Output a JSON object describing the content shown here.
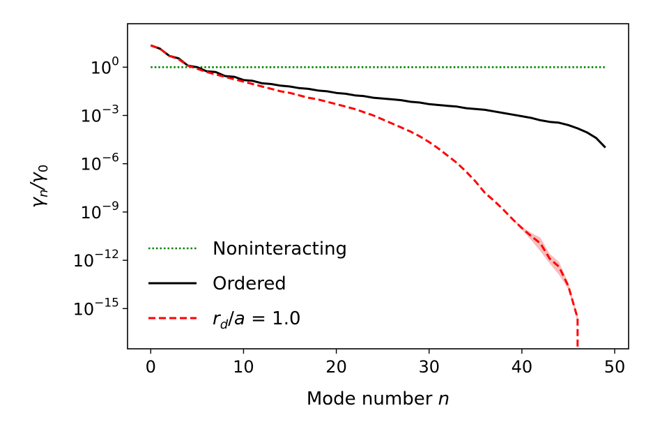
{
  "chart_data": {
    "type": "line",
    "xlabel": {
      "text": "Mode number ",
      "italic": "n"
    },
    "ylabel": {
      "text": "γ",
      "sub_n": "n",
      "sep": "/γ",
      "sub_0": "0"
    },
    "xlim": [
      -2.5,
      51.5
    ],
    "ylim_log10": [
      -17.5,
      2.7
    ],
    "y_scale": "log",
    "x_ticks": [
      0,
      10,
      20,
      30,
      40,
      50
    ],
    "y_ticks": [
      {
        "exp": 0,
        "base": "10",
        "sup": "0"
      },
      {
        "exp": -3,
        "base": "10",
        "sup": "−3"
      },
      {
        "exp": -6,
        "base": "10",
        "sup": "−6"
      },
      {
        "exp": -9,
        "base": "10",
        "sup": "−9"
      },
      {
        "exp": -12,
        "base": "10",
        "sup": "−12"
      },
      {
        "exp": -15,
        "base": "10",
        "sup": "−15"
      }
    ],
    "legend_position": "lower-left",
    "series": [
      {
        "name": "Noninteracting",
        "color": "#008000",
        "style": "dotted",
        "x": [
          0,
          49
        ],
        "log10_y": [
          0,
          0
        ]
      },
      {
        "name": "Ordered",
        "color": "#000000",
        "style": "solid",
        "x": [
          0,
          1,
          2,
          3,
          4,
          5,
          6,
          7,
          8,
          9,
          10,
          11,
          12,
          13,
          14,
          15,
          16,
          17,
          18,
          19,
          20,
          21,
          22,
          23,
          24,
          25,
          26,
          27,
          28,
          29,
          30,
          31,
          32,
          33,
          34,
          35,
          36,
          37,
          38,
          39,
          40,
          41,
          42,
          43,
          44,
          45,
          46,
          47,
          48,
          49
        ],
        "log10_y": [
          1.35,
          1.15,
          0.7,
          0.55,
          0.1,
          0.0,
          -0.25,
          -0.3,
          -0.55,
          -0.6,
          -0.8,
          -0.85,
          -1.0,
          -1.05,
          -1.15,
          -1.2,
          -1.3,
          -1.35,
          -1.45,
          -1.5,
          -1.6,
          -1.65,
          -1.75,
          -1.8,
          -1.9,
          -1.95,
          -2.0,
          -2.05,
          -2.15,
          -2.2,
          -2.3,
          -2.35,
          -2.4,
          -2.45,
          -2.55,
          -2.6,
          -2.65,
          -2.75,
          -2.85,
          -2.95,
          -3.05,
          -3.15,
          -3.3,
          -3.4,
          -3.45,
          -3.6,
          -3.8,
          -4.05,
          -4.4,
          -5.0
        ]
      },
      {
        "name": "r_d/a = 1.0",
        "name_parts": {
          "r": "r",
          "sub": "d",
          "rest": "/",
          "a": "a",
          "eq": " = 1.0"
        },
        "color": "#ff0000",
        "band_color": "#f4a7a7",
        "style": "dashed",
        "x": [
          0,
          1,
          2,
          3,
          4,
          5,
          6,
          7,
          8,
          9,
          10,
          11,
          12,
          13,
          14,
          15,
          16,
          17,
          18,
          19,
          20,
          21,
          22,
          23,
          24,
          25,
          26,
          27,
          28,
          29,
          30,
          31,
          32,
          33,
          34,
          35,
          36,
          37,
          38,
          39,
          40,
          41,
          42,
          43,
          44,
          45,
          46,
          46
        ],
        "log10_y": [
          1.35,
          1.15,
          0.7,
          0.5,
          0.1,
          -0.1,
          -0.3,
          -0.45,
          -0.6,
          -0.75,
          -0.9,
          -1.05,
          -1.2,
          -1.35,
          -1.5,
          -1.6,
          -1.75,
          -1.9,
          -2.0,
          -2.15,
          -2.3,
          -2.45,
          -2.6,
          -2.8,
          -3.0,
          -3.25,
          -3.5,
          -3.75,
          -4.0,
          -4.3,
          -4.65,
          -5.05,
          -5.5,
          -5.95,
          -6.5,
          -7.1,
          -7.8,
          -8.3,
          -8.85,
          -9.45,
          -10.0,
          -10.5,
          -10.95,
          -11.9,
          -12.4,
          -13.6,
          -15.6,
          -17.5
        ],
        "band_low": [
          1.35,
          1.15,
          0.7,
          0.5,
          0.1,
          -0.1,
          -0.3,
          -0.45,
          -0.6,
          -0.75,
          -0.9,
          -1.05,
          -1.2,
          -1.35,
          -1.5,
          -1.6,
          -1.75,
          -1.9,
          -2.0,
          -2.15,
          -2.3,
          -2.45,
          -2.6,
          -2.8,
          -3.0,
          -3.25,
          -3.5,
          -3.75,
          -4.0,
          -4.3,
          -4.65,
          -5.05,
          -5.5,
          -5.95,
          -6.5,
          -7.1,
          -7.8,
          -8.3,
          -8.85,
          -9.45,
          -10.1,
          -10.75,
          -11.45,
          -12.2,
          -12.9,
          -13.8,
          -15.8,
          -17.5
        ],
        "band_high": [
          1.35,
          1.15,
          0.7,
          0.5,
          0.1,
          -0.1,
          -0.3,
          -0.45,
          -0.6,
          -0.75,
          -0.9,
          -1.05,
          -1.2,
          -1.35,
          -1.5,
          -1.6,
          -1.75,
          -1.9,
          -2.0,
          -2.15,
          -2.3,
          -2.45,
          -2.6,
          -2.8,
          -3.0,
          -3.25,
          -3.5,
          -3.75,
          -4.0,
          -4.3,
          -4.65,
          -5.05,
          -5.5,
          -5.95,
          -6.5,
          -7.1,
          -7.8,
          -8.3,
          -8.85,
          -9.4,
          -9.9,
          -10.3,
          -10.6,
          -11.6,
          -12.1,
          -13.4,
          -15.4,
          -17.5
        ]
      }
    ]
  }
}
